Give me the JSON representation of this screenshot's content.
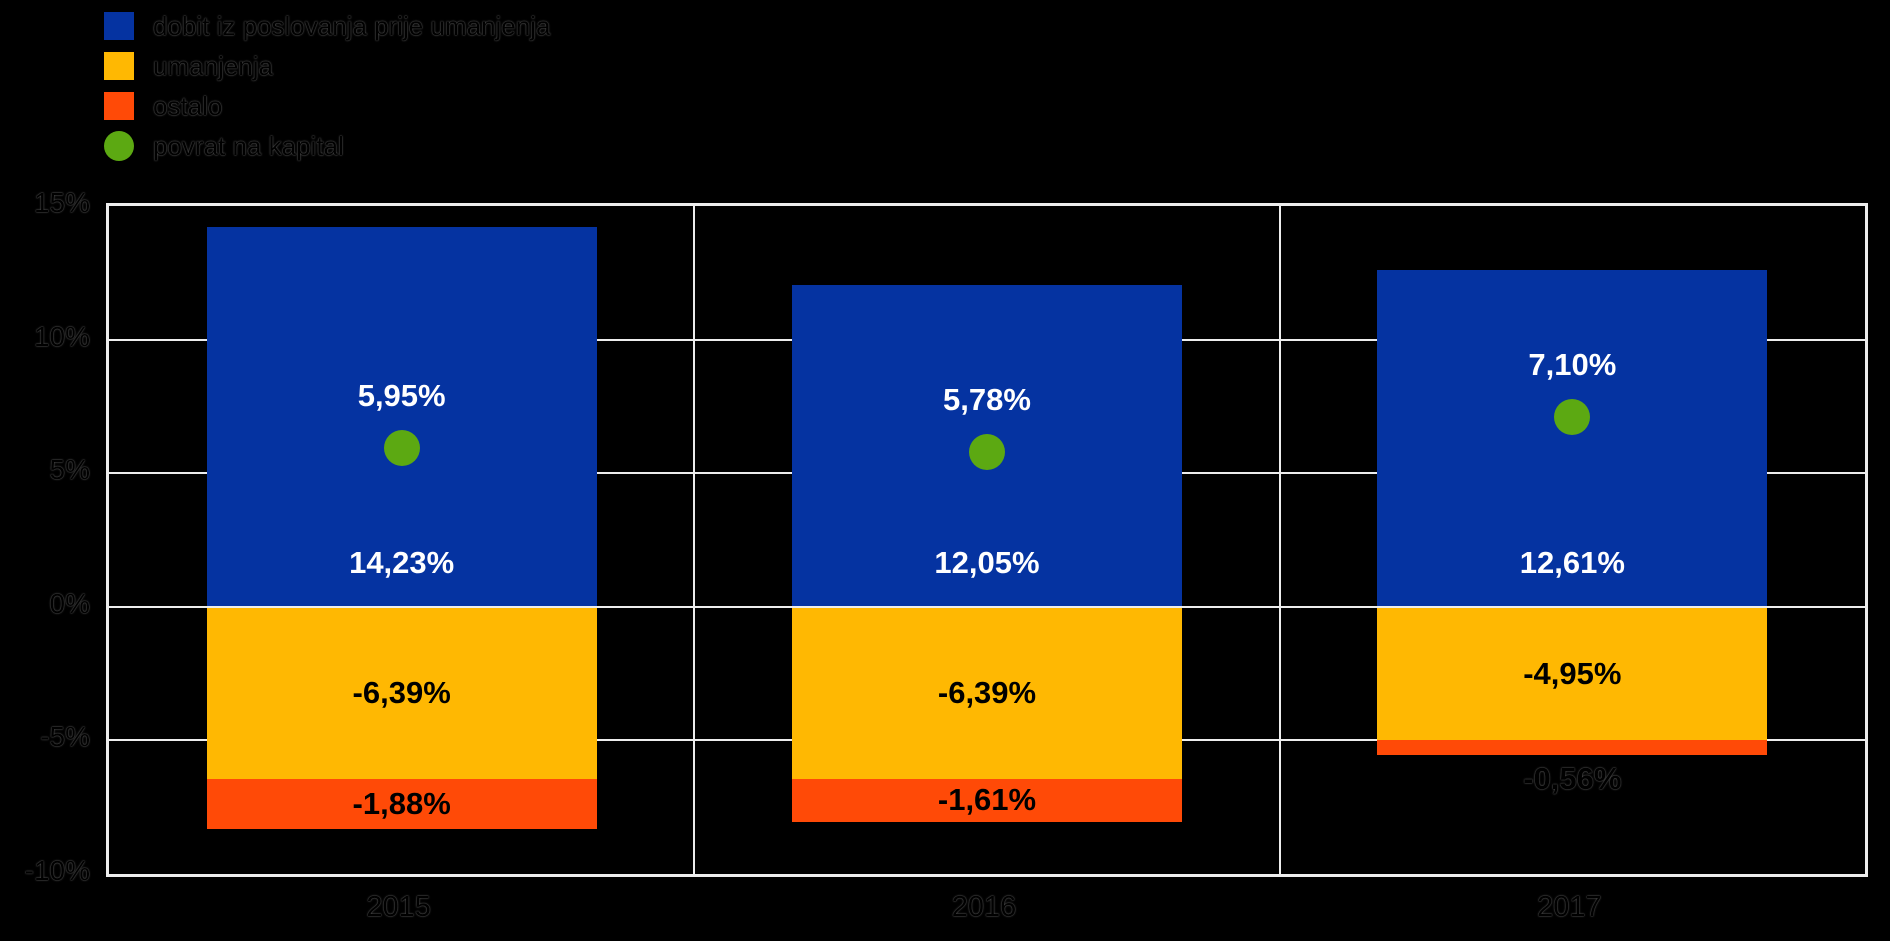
{
  "chart_data": {
    "type": "bar",
    "stacked": true,
    "title": "",
    "xlabel": "",
    "ylabel": "",
    "categories": [
      "2015",
      "2016",
      "2017"
    ],
    "series": [
      {
        "name": "dobit iz poslovanja prije umanjenja",
        "role": "bar",
        "color": "#0533A1",
        "values": [
          14.23,
          12.05,
          12.61
        ],
        "data_labels": [
          "14,23%",
          "12,05%",
          "12,61%"
        ],
        "label_color": "#ffffff"
      },
      {
        "name": "umanjenja",
        "role": "bar",
        "color": "#FFB802",
        "values": [
          -6.39,
          -6.39,
          -4.95
        ],
        "data_labels": [
          "-6,39%",
          "-6,39%",
          "-4,95%"
        ],
        "label_color": "#000000"
      },
      {
        "name": "ostalo",
        "role": "bar",
        "color": "#FF4A07",
        "values": [
          -1.88,
          -1.61,
          -0.56
        ],
        "data_labels": [
          "-1,88%",
          "-1,61%",
          "-0,56%"
        ],
        "label_color": "#000000",
        "label_outside_if_small": true
      },
      {
        "name": "povrat na kapital",
        "role": "point",
        "color": "#5CA912",
        "values": [
          5.95,
          5.78,
          7.1
        ],
        "data_labels": [
          "5,95%",
          "5,78%",
          "7,10%"
        ],
        "label_color": "#ffffff"
      }
    ],
    "ylim": [
      -10,
      15
    ],
    "yticks": [
      {
        "value": 15,
        "label": "15%"
      },
      {
        "value": 10,
        "label": "10%"
      },
      {
        "value": 5,
        "label": "5%"
      },
      {
        "value": 0,
        "label": "0%"
      },
      {
        "value": -5,
        "label": "-5%"
      },
      {
        "value": -10,
        "label": "-10%"
      }
    ],
    "grid": true,
    "gridline_color": "#ededed",
    "background": "#000000",
    "legend_position": "top-left"
  },
  "legend": {
    "items": [
      {
        "label": "dobit iz poslovanja prije umanjenja",
        "swatch": "square",
        "color": "#0533A1"
      },
      {
        "label": "umanjenja",
        "swatch": "square",
        "color": "#FFB802"
      },
      {
        "label": "ostalo",
        "swatch": "square",
        "color": "#FF4A07"
      },
      {
        "label": "povrat na kapital",
        "swatch": "circle",
        "color": "#5CA912"
      }
    ]
  }
}
